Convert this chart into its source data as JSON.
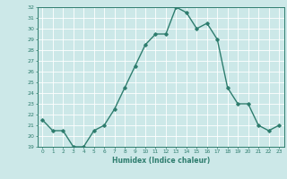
{
  "x": [
    0,
    1,
    2,
    3,
    4,
    5,
    6,
    7,
    8,
    9,
    10,
    11,
    12,
    13,
    14,
    15,
    16,
    17,
    18,
    19,
    20,
    21,
    22,
    23
  ],
  "y": [
    21.5,
    20.5,
    20.5,
    19.0,
    19.0,
    20.5,
    21.0,
    22.5,
    24.5,
    26.5,
    28.5,
    29.5,
    29.5,
    32.0,
    31.5,
    30.0,
    30.5,
    29.0,
    24.5,
    23.0,
    23.0,
    21.0,
    20.5,
    21.0
  ],
  "xlabel": "Humidex (Indice chaleur)",
  "xlim": [
    -0.5,
    23.5
  ],
  "ylim": [
    19,
    32
  ],
  "yticks": [
    19,
    20,
    21,
    22,
    23,
    24,
    25,
    26,
    27,
    28,
    29,
    30,
    31,
    32
  ],
  "xticks": [
    0,
    1,
    2,
    3,
    4,
    5,
    6,
    7,
    8,
    9,
    10,
    11,
    12,
    13,
    14,
    15,
    16,
    17,
    18,
    19,
    20,
    21,
    22,
    23
  ],
  "line_color": "#2e7d6e",
  "marker": "D",
  "marker_size": 1.8,
  "bg_color": "#cce8e8",
  "grid_color": "#ffffff",
  "axes_color": "#2e7d6e",
  "tick_label_color": "#2e7d6e",
  "xlabel_color": "#2e7d6e",
  "line_width": 1.0
}
